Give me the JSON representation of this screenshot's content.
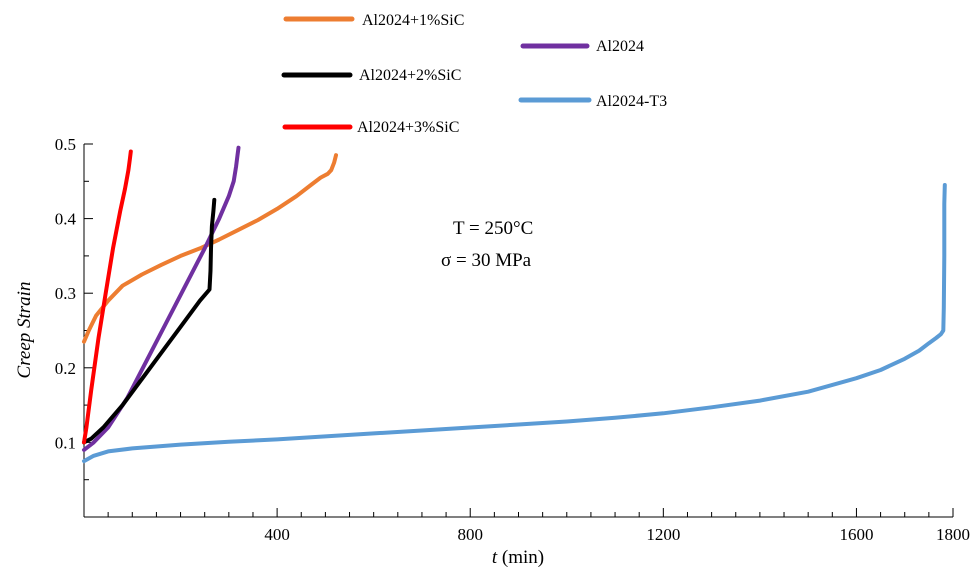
{
  "chart_data": {
    "type": "line",
    "title": "",
    "xlabel_var": "t",
    "xlabel_unit": " (min)",
    "ylabel": "Creep Strain",
    "xlim": [
      0,
      1800
    ],
    "ylim": [
      0,
      0.5
    ],
    "x_ticks": [
      400,
      800,
      1200,
      1600,
      1800
    ],
    "y_ticks": [
      0.1,
      0.2,
      0.3,
      0.4,
      0.5
    ],
    "x_minor_step": 50,
    "y_minor_step": 0.05,
    "grid": false,
    "annotations": [
      "T = 250°C",
      "σ = 30 MPa"
    ],
    "series": [
      {
        "name": "Al2024+1%SiC",
        "color": "#ED7D31",
        "x": [
          0,
          10,
          25,
          50,
          80,
          120,
          160,
          200,
          240,
          280,
          320,
          360,
          400,
          440,
          470,
          490,
          505,
          512,
          518,
          522
        ],
        "y": [
          0.235,
          0.25,
          0.27,
          0.29,
          0.31,
          0.325,
          0.338,
          0.35,
          0.36,
          0.372,
          0.385,
          0.398,
          0.413,
          0.43,
          0.445,
          0.455,
          0.46,
          0.465,
          0.475,
          0.485
        ]
      },
      {
        "name": "Al2024",
        "color": "#7030A0",
        "x": [
          0,
          20,
          50,
          90,
          130,
          170,
          210,
          250,
          280,
          300,
          310,
          315,
          318,
          320
        ],
        "y": [
          0.09,
          0.1,
          0.12,
          0.16,
          0.21,
          0.26,
          0.31,
          0.36,
          0.4,
          0.43,
          0.45,
          0.47,
          0.485,
          0.495
        ]
      },
      {
        "name": "Al2024+2%SiC",
        "color": "#000000",
        "x": [
          0,
          15,
          40,
          80,
          120,
          160,
          200,
          240,
          260,
          262,
          263,
          265,
          268,
          270
        ],
        "y": [
          0.1,
          0.105,
          0.12,
          0.15,
          0.185,
          0.22,
          0.255,
          0.29,
          0.305,
          0.33,
          0.36,
          0.39,
          0.41,
          0.425
        ]
      },
      {
        "name": "Al2024+3%SiC",
        "color": "#FF0000",
        "x": [
          0,
          5,
          15,
          30,
          45,
          60,
          75,
          85,
          92,
          95,
          97
        ],
        "y": [
          0.1,
          0.12,
          0.17,
          0.24,
          0.3,
          0.36,
          0.41,
          0.44,
          0.465,
          0.48,
          0.49
        ]
      },
      {
        "name": "Al2024-T3",
        "color": "#5B9BD5",
        "x": [
          0,
          20,
          50,
          100,
          200,
          300,
          400,
          500,
          600,
          700,
          800,
          900,
          1000,
          1100,
          1200,
          1300,
          1400,
          1500,
          1600,
          1650,
          1700,
          1730,
          1750,
          1765,
          1775,
          1780,
          1781,
          1782,
          1782,
          1783
        ],
        "y": [
          0.075,
          0.082,
          0.088,
          0.092,
          0.097,
          0.101,
          0.104,
          0.108,
          0.112,
          0.116,
          0.12,
          0.124,
          0.128,
          0.133,
          0.139,
          0.147,
          0.156,
          0.168,
          0.186,
          0.197,
          0.212,
          0.223,
          0.233,
          0.24,
          0.245,
          0.25,
          0.28,
          0.35,
          0.42,
          0.445
        ]
      }
    ]
  }
}
